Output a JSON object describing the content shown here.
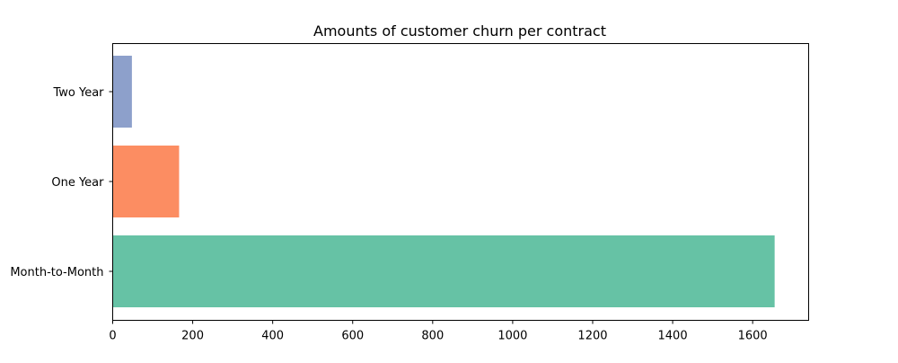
{
  "chart_data": {
    "type": "bar",
    "orientation": "horizontal",
    "title": "Amounts of customer churn per contract",
    "xlabel": "",
    "ylabel": "",
    "categories": [
      "Month-to-Month",
      "One Year",
      "Two Year"
    ],
    "values": [
      1655,
      166,
      48
    ],
    "colors": [
      "#66c2a5",
      "#fc8d62",
      "#8da0cb"
    ],
    "xlim": [
      0,
      1740
    ],
    "xticks": [
      0,
      200,
      400,
      600,
      800,
      1000,
      1200,
      1400,
      1600
    ],
    "grid": false,
    "legend": "none"
  }
}
